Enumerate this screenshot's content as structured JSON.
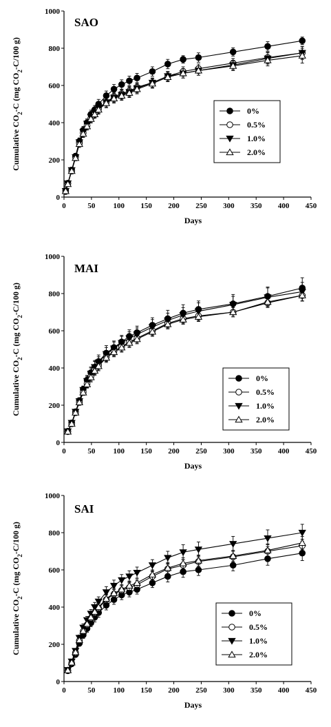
{
  "chart_data": [
    {
      "type": "line",
      "title": "SAO",
      "xlabel": "Days",
      "ylabel": "Cumulative CO2-C (mg CO2-C/100 g)",
      "ylabel_parts": [
        "Cumulative CO",
        "2",
        "-C (mg CO",
        "2",
        "-C/100 g)"
      ],
      "xlim": [
        0,
        450
      ],
      "ylim": [
        0,
        1000
      ],
      "xticks": [
        0,
        50,
        100,
        150,
        200,
        250,
        300,
        350,
        400,
        450
      ],
      "yticks": [
        0,
        200,
        400,
        600,
        800,
        1000
      ],
      "legend": "right",
      "x": [
        3,
        7,
        14,
        21,
        28,
        35,
        42,
        49,
        56,
        63,
        77,
        91,
        105,
        119,
        133,
        161,
        189,
        217,
        245,
        308,
        371,
        434
      ],
      "series": [
        {
          "name": "0%",
          "marker": "circle-filled",
          "values": [
            35,
            75,
            145,
            220,
            300,
            360,
            400,
            445,
            470,
            500,
            545,
            580,
            605,
            625,
            640,
            675,
            715,
            740,
            750,
            780,
            810,
            840
          ],
          "err": [
            12,
            12,
            15,
            15,
            18,
            20,
            20,
            22,
            22,
            25,
            25,
            25,
            25,
            25,
            25,
            25,
            25,
            20,
            25,
            22,
            25,
            20
          ]
        },
        {
          "name": "0.5%",
          "marker": "circle-open",
          "values": [
            30,
            72,
            140,
            215,
            290,
            345,
            385,
            425,
            450,
            475,
            510,
            540,
            555,
            570,
            590,
            615,
            650,
            675,
            690,
            720,
            750,
            775
          ],
          "err": [
            10,
            12,
            15,
            15,
            18,
            20,
            20,
            22,
            22,
            25,
            25,
            25,
            25,
            25,
            25,
            25,
            25,
            25,
            25,
            25,
            30,
            35
          ]
        },
        {
          "name": "1.0%",
          "marker": "triangle-down-filled",
          "values": [
            33,
            74,
            145,
            215,
            295,
            350,
            395,
            430,
            455,
            480,
            510,
            535,
            550,
            565,
            585,
            615,
            650,
            665,
            680,
            710,
            745,
            775
          ],
          "err": [
            10,
            12,
            15,
            15,
            18,
            20,
            20,
            22,
            22,
            25,
            25,
            25,
            25,
            25,
            25,
            25,
            25,
            25,
            25,
            25,
            30,
            35
          ]
        },
        {
          "name": "2.0%",
          "marker": "triangle-up-open",
          "values": [
            32,
            70,
            140,
            210,
            285,
            340,
            380,
            420,
            445,
            470,
            505,
            530,
            545,
            560,
            580,
            610,
            645,
            665,
            680,
            705,
            735,
            760
          ],
          "err": [
            10,
            12,
            15,
            15,
            18,
            20,
            20,
            22,
            22,
            25,
            25,
            25,
            25,
            25,
            25,
            25,
            25,
            25,
            25,
            25,
            30,
            40
          ]
        }
      ]
    },
    {
      "type": "line",
      "title": "MAI",
      "xlabel": "Days",
      "ylabel": "Cumulative CO2-C (mg CO2-C/100 g)",
      "ylabel_parts": [
        "Cumulative CO",
        "2",
        "-C (mg CO",
        "2",
        "-C/100 g)"
      ],
      "xlim": [
        0,
        450
      ],
      "ylim": [
        0,
        1000
      ],
      "xticks": [
        0,
        50,
        100,
        150,
        200,
        250,
        300,
        350,
        400,
        450
      ],
      "yticks": [
        0,
        200,
        400,
        600,
        800,
        1000
      ],
      "legend": "right",
      "x": [
        7,
        14,
        21,
        28,
        35,
        42,
        49,
        56,
        63,
        77,
        91,
        105,
        119,
        133,
        161,
        189,
        217,
        245,
        308,
        371,
        434
      ],
      "series": [
        {
          "name": "0%",
          "marker": "circle-filled",
          "values": [
            60,
            105,
            165,
            225,
            285,
            335,
            375,
            405,
            435,
            480,
            510,
            540,
            570,
            590,
            630,
            665,
            695,
            715,
            745,
            785,
            830
          ],
          "err": [
            8,
            10,
            12,
            15,
            18,
            25,
            30,
            35,
            35,
            40,
            35,
            35,
            35,
            35,
            40,
            45,
            45,
            45,
            50,
            50,
            55
          ]
        },
        {
          "name": "0.5%",
          "marker": "circle-open",
          "values": [
            58,
            100,
            160,
            215,
            270,
            315,
            355,
            390,
            415,
            460,
            490,
            515,
            540,
            560,
            600,
            640,
            665,
            680,
            700,
            750,
            790
          ],
          "err": [
            8,
            10,
            12,
            15,
            15,
            20,
            25,
            25,
            25,
            25,
            25,
            25,
            25,
            25,
            25,
            25,
            25,
            25,
            25,
            25,
            30
          ]
        },
        {
          "name": "1.0%",
          "marker": "triangle-down-filled",
          "values": [
            60,
            105,
            165,
            222,
            282,
            330,
            370,
            405,
            430,
            475,
            505,
            535,
            560,
            580,
            620,
            655,
            685,
            705,
            740,
            780,
            810
          ],
          "err": [
            8,
            10,
            12,
            15,
            18,
            25,
            30,
            30,
            30,
            35,
            35,
            35,
            35,
            35,
            40,
            40,
            40,
            45,
            45,
            50,
            50
          ]
        },
        {
          "name": "2.0%",
          "marker": "triangle-up-open",
          "values": [
            58,
            100,
            160,
            215,
            268,
            312,
            350,
            385,
            410,
            455,
            485,
            510,
            535,
            555,
            595,
            635,
            660,
            675,
            700,
            755,
            790
          ],
          "err": [
            8,
            10,
            12,
            15,
            15,
            20,
            25,
            25,
            25,
            25,
            25,
            25,
            25,
            25,
            25,
            25,
            25,
            25,
            25,
            25,
            30
          ]
        }
      ]
    },
    {
      "type": "line",
      "title": "SAI",
      "xlabel": "Days",
      "ylabel": "Cumulative CO2-C (mg CO2-C/100 g)",
      "ylabel_parts": [
        "Cumulative CO",
        "2",
        "-C (mg CO",
        "2",
        "-C/100 g)"
      ],
      "xlim": [
        0,
        450
      ],
      "ylim": [
        0,
        1000
      ],
      "xticks": [
        0,
        50,
        100,
        150,
        200,
        250,
        300,
        350,
        400,
        450
      ],
      "yticks": [
        0,
        200,
        400,
        600,
        800,
        1000
      ],
      "legend": "right",
      "x": [
        7,
        14,
        21,
        28,
        35,
        42,
        49,
        56,
        63,
        77,
        91,
        105,
        119,
        133,
        161,
        189,
        217,
        245,
        308,
        371,
        434
      ],
      "series": [
        {
          "name": "0%",
          "marker": "circle-filled",
          "values": [
            58,
            95,
            145,
            205,
            250,
            285,
            315,
            345,
            370,
            410,
            440,
            465,
            480,
            495,
            530,
            565,
            590,
            600,
            625,
            660,
            690
          ],
          "err": [
            5,
            8,
            10,
            15,
            18,
            20,
            20,
            25,
            25,
            25,
            25,
            25,
            25,
            25,
            25,
            30,
            30,
            30,
            30,
            35,
            40
          ]
        },
        {
          "name": "0.5%",
          "marker": "circle-open",
          "values": [
            60,
            100,
            155,
            220,
            270,
            305,
            340,
            370,
            395,
            440,
            470,
            490,
            505,
            520,
            565,
            605,
            625,
            645,
            670,
            700,
            730
          ],
          "err": [
            5,
            8,
            10,
            15,
            18,
            20,
            20,
            25,
            25,
            25,
            25,
            25,
            25,
            25,
            25,
            30,
            30,
            30,
            30,
            35,
            35
          ]
        },
        {
          "name": "1.0%",
          "marker": "triangle-down-filled",
          "values": [
            62,
            108,
            165,
            235,
            290,
            330,
            365,
            400,
            430,
            480,
            515,
            545,
            565,
            585,
            625,
            665,
            695,
            710,
            740,
            770,
            800
          ],
          "err": [
            5,
            8,
            12,
            15,
            20,
            20,
            22,
            25,
            25,
            30,
            30,
            30,
            30,
            30,
            30,
            35,
            40,
            40,
            40,
            45,
            45
          ]
        },
        {
          "name": "2.0%",
          "marker": "triangle-up-open",
          "values": [
            60,
            102,
            158,
            222,
            272,
            310,
            345,
            375,
            400,
            445,
            475,
            495,
            515,
            530,
            575,
            610,
            635,
            650,
            675,
            705,
            745
          ],
          "err": [
            5,
            8,
            10,
            15,
            18,
            20,
            20,
            25,
            25,
            25,
            25,
            25,
            25,
            25,
            25,
            30,
            30,
            30,
            30,
            35,
            35
          ]
        }
      ]
    }
  ]
}
